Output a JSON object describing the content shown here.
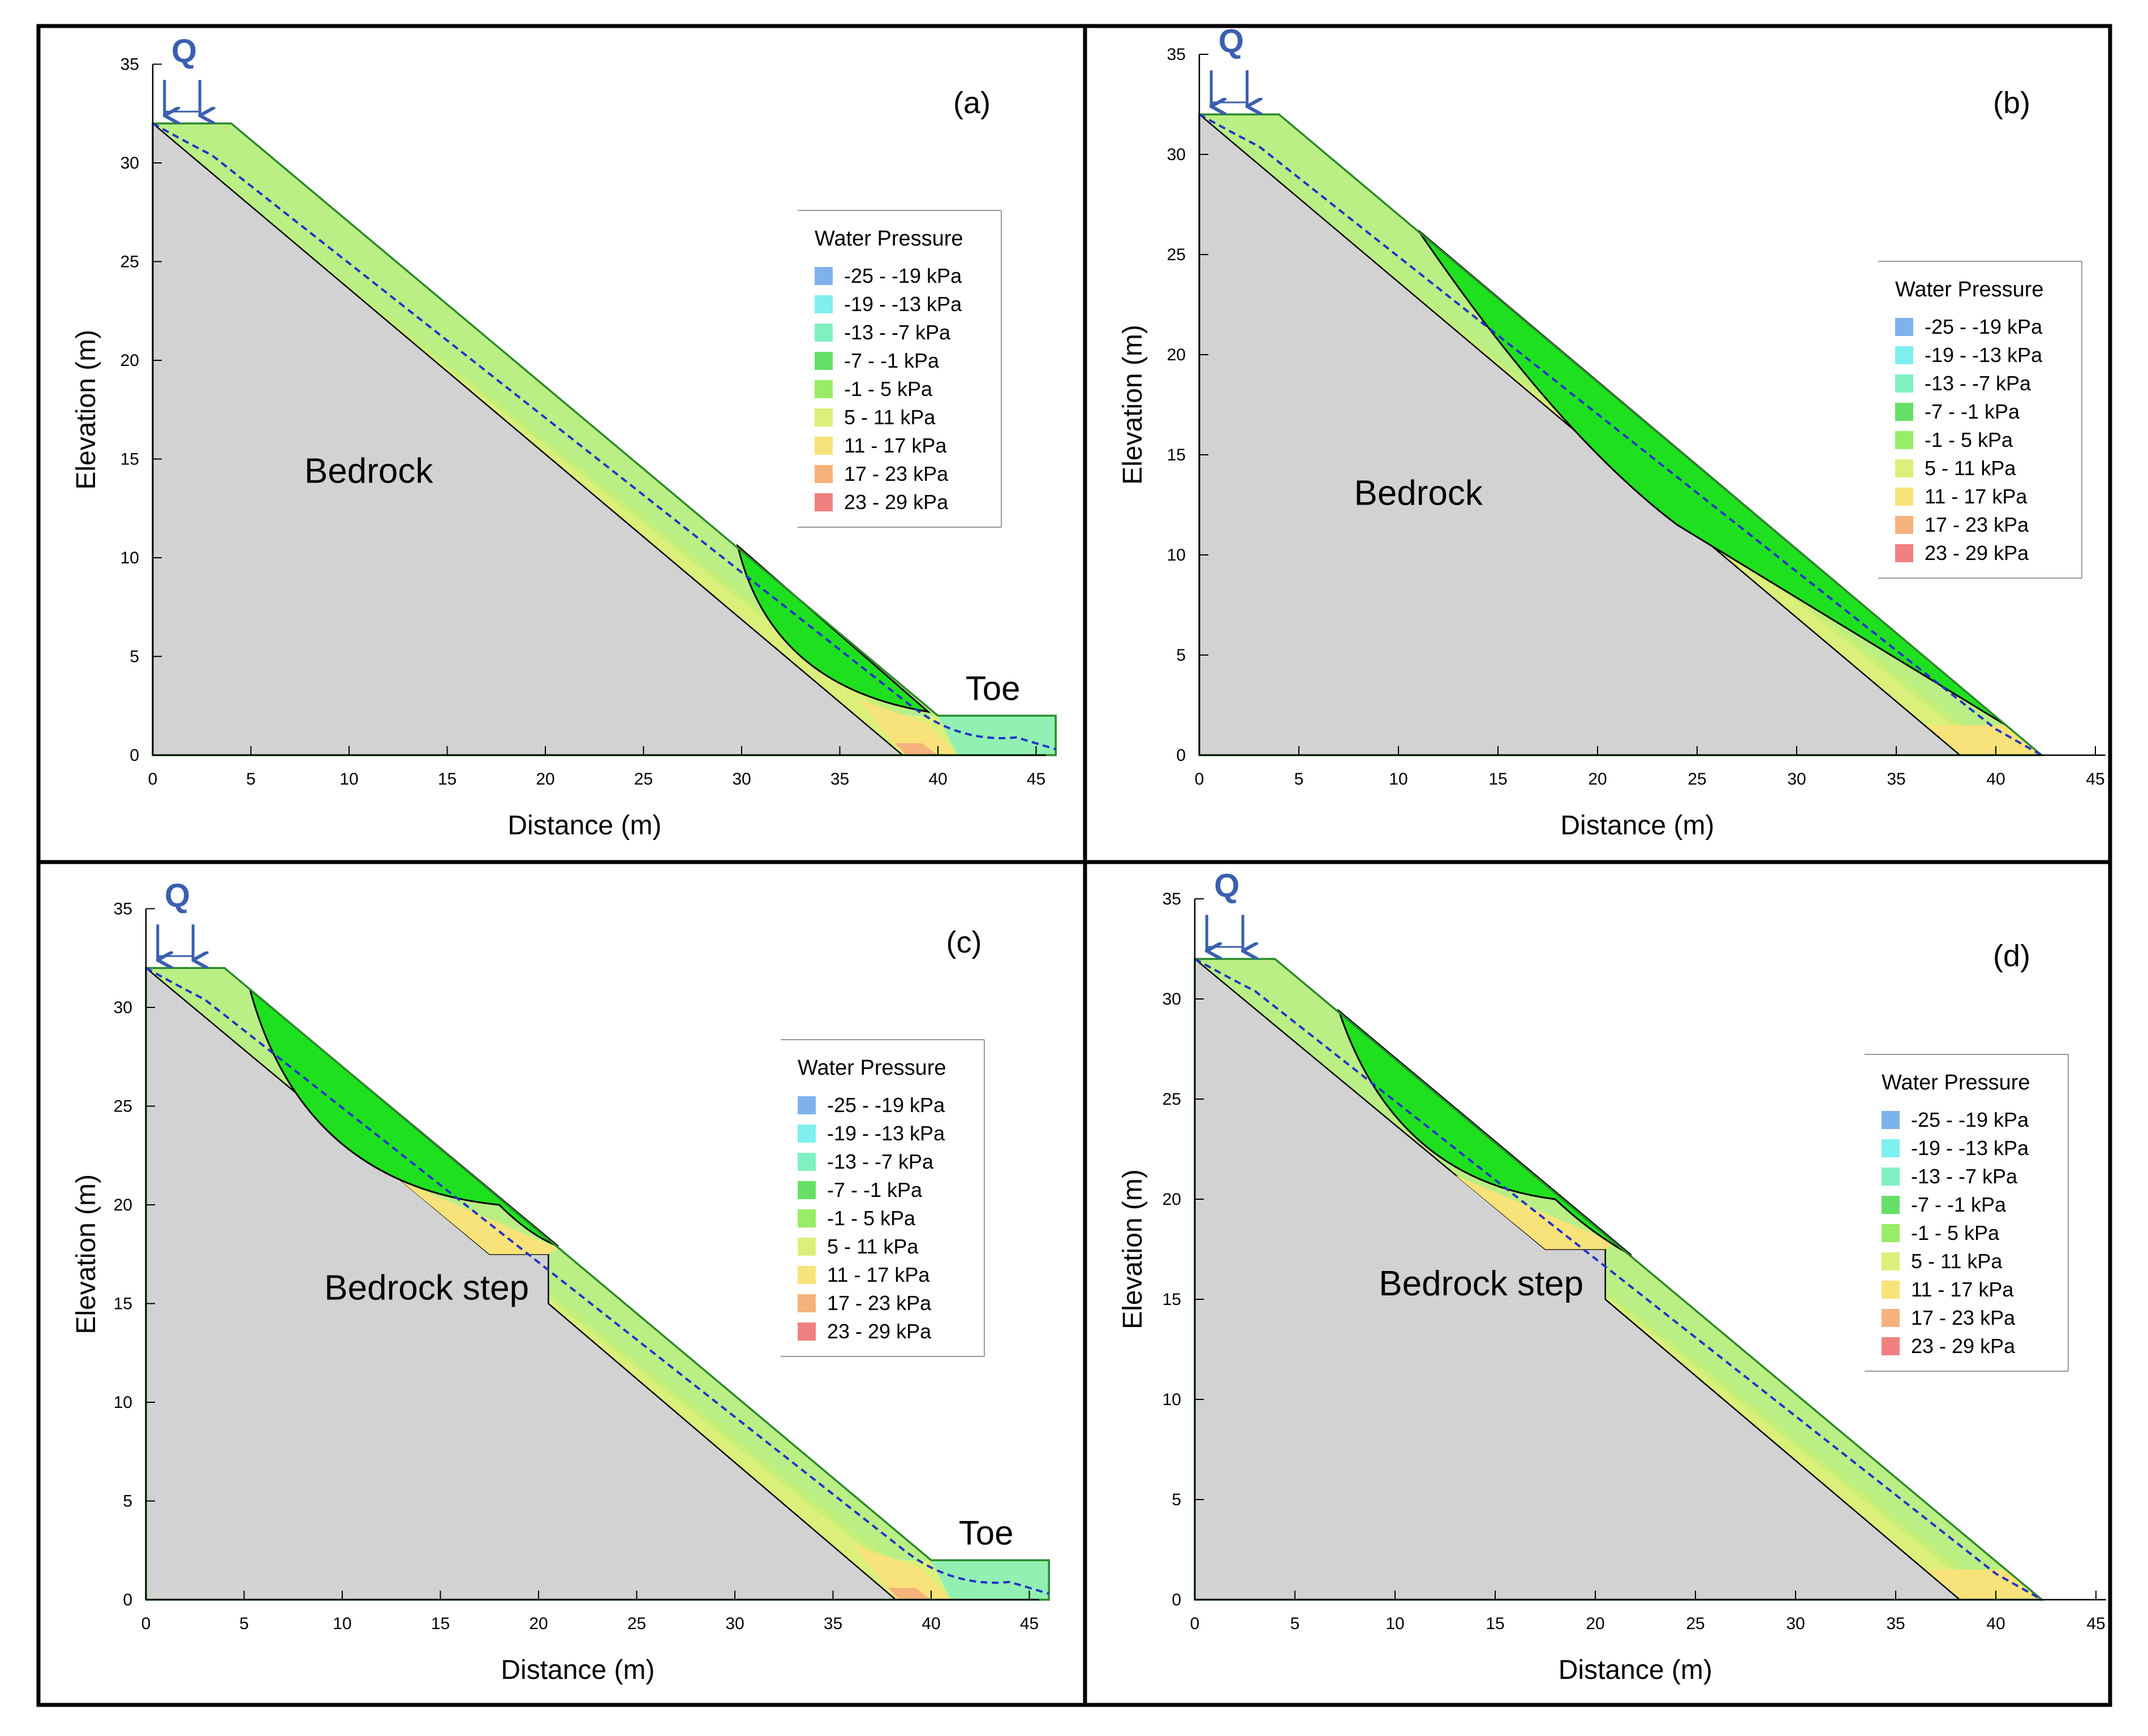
{
  "figure": {
    "axis_labels": {
      "x": "Distance  (m)",
      "y": "Elevation  (m)"
    },
    "legend": {
      "title": "Water Pressure",
      "entries": [
        {
          "label": "-25 - -19 kPa",
          "color": "#7fb2ec"
        },
        {
          "label": "-19 - -13 kPa",
          "color": "#7fefef"
        },
        {
          "label": "-13 - -7 kPa",
          "color": "#7ff0c2"
        },
        {
          "label": "-7 - -1 kPa",
          "color": "#66e066"
        },
        {
          "label": "-1 - 5 kPa",
          "color": "#99ec66"
        },
        {
          "label": "5 - 11 kPa",
          "color": "#daf07a"
        },
        {
          "label": "11 - 17 kPa",
          "color": "#f8e27a"
        },
        {
          "label": "17 - 23 kPa",
          "color": "#f6b27c"
        },
        {
          "label": "23 - 29 kPa",
          "color": "#f08080"
        }
      ]
    },
    "load_label": "Q",
    "panels": [
      {
        "id": "a",
        "panel_label": "(a)",
        "region_label": "Bedrock",
        "toe_label": "Toe",
        "x_ticks": [
          "0",
          "5",
          "10",
          "15",
          "20",
          "25",
          "30",
          "35",
          "40",
          "45"
        ],
        "y_ticks": [
          "0",
          "5",
          "10",
          "15",
          "20",
          "25",
          "30",
          "35"
        ]
      },
      {
        "id": "b",
        "panel_label": "(b)",
        "region_label": "Bedrock",
        "x_ticks": [
          "0",
          "5",
          "10",
          "15",
          "20",
          "25",
          "30",
          "35",
          "40",
          "45"
        ],
        "y_ticks": [
          "0",
          "5",
          "10",
          "15",
          "20",
          "25",
          "30",
          "35"
        ]
      },
      {
        "id": "c",
        "panel_label": "(c)",
        "region_label": "Bedrock step",
        "toe_label": "Toe",
        "x_ticks": [
          "0",
          "5",
          "10",
          "15",
          "20",
          "25",
          "30",
          "35",
          "40",
          "45"
        ],
        "y_ticks": [
          "0",
          "5",
          "10",
          "15",
          "20",
          "25",
          "30",
          "35"
        ]
      },
      {
        "id": "d",
        "panel_label": "(d)",
        "region_label": "Bedrock step",
        "x_ticks": [
          "0",
          "5",
          "10",
          "15",
          "20",
          "25",
          "30",
          "35",
          "40",
          "45"
        ],
        "y_ticks": [
          "0",
          "5",
          "10",
          "15",
          "20",
          "25",
          "30",
          "35"
        ]
      }
    ]
  }
}
